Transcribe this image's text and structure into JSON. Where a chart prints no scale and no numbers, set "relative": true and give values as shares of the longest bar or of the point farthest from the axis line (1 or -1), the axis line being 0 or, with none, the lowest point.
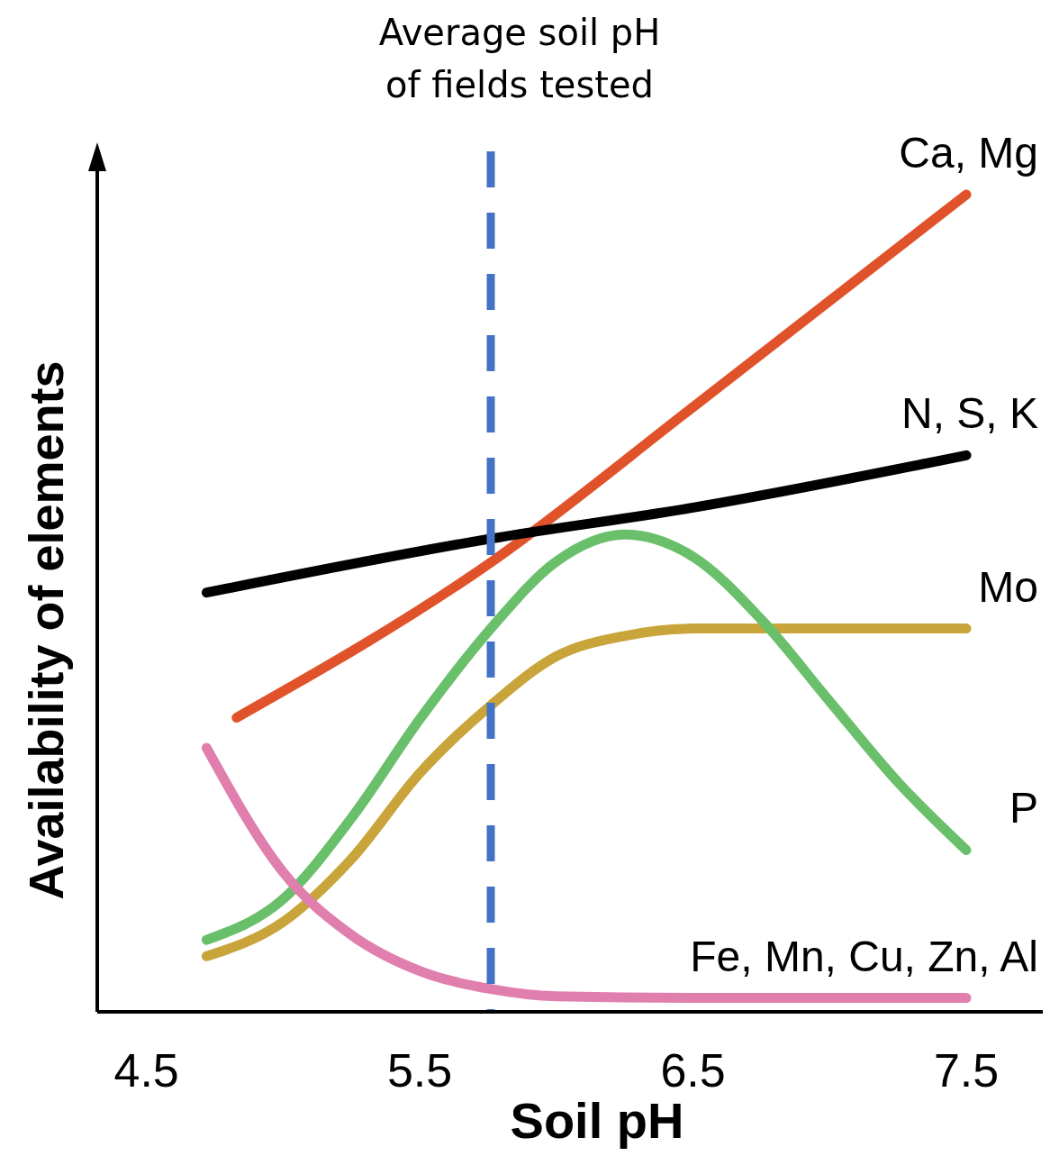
{
  "chart_data": {
    "type": "line",
    "relative": true,
    "xlabel": "Soil pH",
    "ylabel": "Availability of elements",
    "xlim": [
      4.32,
      7.78
    ],
    "xticks": [
      4.5,
      5.5,
      6.5,
      7.5
    ],
    "grid": false,
    "line_style": "solid",
    "ref_lines": [
      {
        "axis": "x",
        "value": 5.76,
        "label": "Average soil pH of fields tested",
        "color": "#4472c4",
        "line_style": "dashed"
      }
    ],
    "series": [
      {
        "name": "Ca, Mg",
        "color": "#e0532a",
        "x": [
          4.83,
          5.76,
          6.5,
          7.5
        ],
        "values": [
          0.36,
          0.55,
          0.74,
          1.0
        ]
      },
      {
        "name": "N, S, K",
        "color": "#000000",
        "x": [
          4.72,
          5.76,
          6.5,
          7.5
        ],
        "values": [
          0.513,
          0.579,
          0.617,
          0.681
        ]
      },
      {
        "name": "Mo",
        "color": "#c9a43a",
        "x": [
          4.72,
          5.0,
          5.25,
          5.5,
          5.76,
          6.0,
          6.25,
          6.5,
          7.0,
          7.5
        ],
        "values": [
          0.068,
          0.11,
          0.187,
          0.292,
          0.375,
          0.435,
          0.46,
          0.469,
          0.469,
          0.469
        ]
      },
      {
        "name": "P",
        "color": "#6abf6a",
        "x": [
          4.72,
          5.0,
          5.25,
          5.5,
          5.76,
          6.0,
          6.25,
          6.5,
          6.75,
          7.0,
          7.25,
          7.5
        ],
        "values": [
          0.088,
          0.138,
          0.237,
          0.358,
          0.469,
          0.551,
          0.584,
          0.557,
          0.48,
          0.38,
          0.281,
          0.198
        ]
      },
      {
        "name": "Fe, Mn, Cu, Zn, Al",
        "color": "#e07fae",
        "x": [
          4.72,
          5.0,
          5.25,
          5.5,
          5.76,
          6.0,
          6.5,
          7.5
        ],
        "values": [
          0.323,
          0.171,
          0.094,
          0.05,
          0.028,
          0.019,
          0.017,
          0.017
        ]
      }
    ]
  }
}
